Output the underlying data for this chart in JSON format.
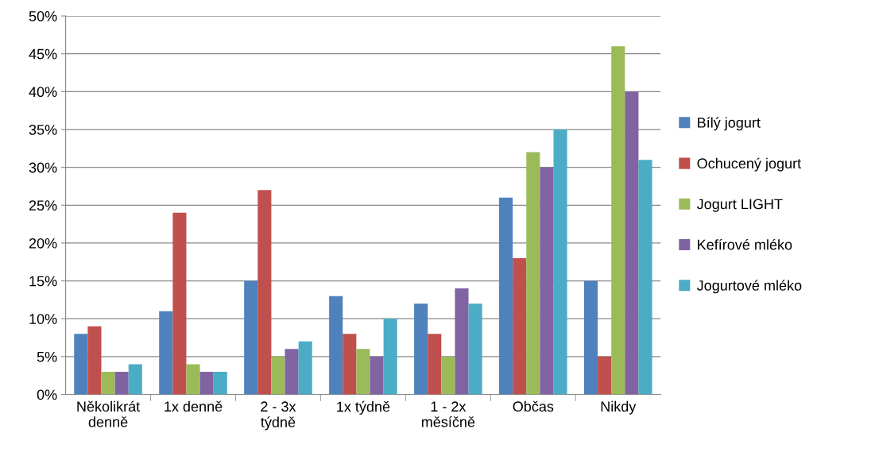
{
  "chart_data": {
    "type": "bar",
    "categories": [
      "Několikrát\ndenně",
      "1x denně",
      "2 - 3x\ntýdně",
      "1x týdně",
      "1 - 2x\nměsíčně",
      "Občas",
      "Nikdy"
    ],
    "series": [
      {
        "name": "Bílý jogurt",
        "color": "#4f81bd",
        "values": [
          8,
          11,
          15,
          13,
          12,
          26,
          15
        ]
      },
      {
        "name": "Ochucený jogurt",
        "color": "#c0504d",
        "values": [
          9,
          24,
          27,
          8,
          8,
          18,
          5
        ]
      },
      {
        "name": "Jogurt LIGHT",
        "color": "#9bbb59",
        "values": [
          3,
          4,
          5,
          6,
          5,
          32,
          46
        ]
      },
      {
        "name": "Kefírové mléko",
        "color": "#8064a2",
        "values": [
          3,
          3,
          6,
          5,
          14,
          30,
          40
        ]
      },
      {
        "name": "Jogurtové mléko",
        "color": "#4bacc6",
        "values": [
          4,
          3,
          7,
          10,
          12,
          35,
          31
        ]
      }
    ],
    "ylim": [
      0,
      50
    ],
    "yticks": [
      {
        "value": 0,
        "label": "0%"
      },
      {
        "value": 5,
        "label": "5%"
      },
      {
        "value": 10,
        "label": "10%"
      },
      {
        "value": 15,
        "label": "15%"
      },
      {
        "value": 20,
        "label": "20%"
      },
      {
        "value": 25,
        "label": "25%"
      },
      {
        "value": 30,
        "label": "30%"
      },
      {
        "value": 35,
        "label": "35%"
      },
      {
        "value": 40,
        "label": "40%"
      },
      {
        "value": 45,
        "label": "45%"
      },
      {
        "value": 50,
        "label": "50%"
      }
    ],
    "grid": "y",
    "legend": "right"
  }
}
